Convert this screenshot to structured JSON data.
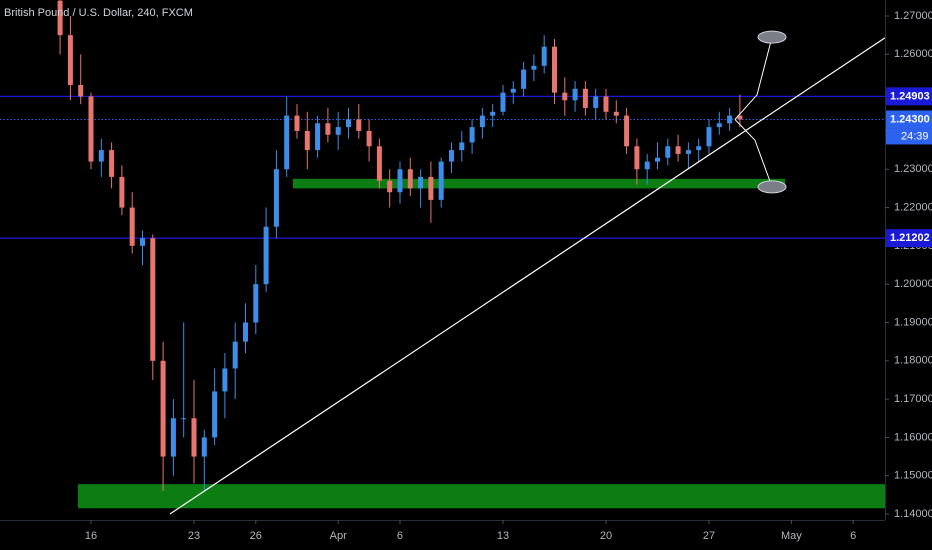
{
  "chart_data": {
    "type": "candlestick",
    "title": "British Pound / U.S. Dollar, 240, FXCM",
    "up_color": "#3d8ee8",
    "down_color": "#e8756e",
    "x": [
      -1.5,
      -1,
      -0.5,
      0,
      0.5,
      1,
      1.5,
      2,
      2.5,
      3,
      3.5,
      4,
      4.5,
      5,
      5.5,
      6,
      6.5,
      7,
      7.5,
      8,
      8.5,
      9,
      9.5,
      10,
      10.5,
      11,
      11.5,
      12,
      12.5,
      13,
      13.5,
      14,
      14.5,
      15,
      15.5,
      16,
      16.5,
      17,
      17.5,
      18,
      18.5,
      19,
      19.5,
      20,
      20.5,
      21,
      21.5,
      22,
      22.5,
      23,
      23.5,
      24,
      24.5,
      25,
      25.5,
      26,
      26.5,
      27,
      27.5,
      28,
      28.5,
      29,
      29.5,
      30,
      30.5,
      31,
      31.5
    ],
    "open": [
      1.274,
      1.265,
      1.252,
      1.249,
      1.232,
      1.235,
      1.228,
      1.22,
      1.21,
      1.212,
      1.18,
      1.155,
      1.165,
      1.165,
      1.155,
      1.16,
      1.172,
      1.178,
      1.185,
      1.19,
      1.2,
      1.215,
      1.23,
      1.244,
      1.24,
      1.235,
      1.242,
      1.239,
      1.241,
      1.243,
      1.24,
      1.236,
      1.227,
      1.224,
      1.23,
      1.225,
      1.228,
      1.222,
      1.232,
      1.235,
      1.237,
      1.241,
      1.244,
      1.245,
      1.25,
      1.251,
      1.256,
      1.257,
      1.262,
      1.25,
      1.248,
      1.251,
      1.246,
      1.249,
      1.245,
      1.244,
      1.236,
      1.23,
      1.232,
      1.233,
      1.236,
      1.234,
      1.235,
      1.236,
      1.241,
      1.242,
      1.244
    ],
    "high": [
      1.2742,
      1.27,
      1.26,
      1.25,
      1.238,
      1.237,
      1.231,
      1.224,
      1.214,
      1.213,
      1.185,
      1.17,
      1.19,
      1.175,
      1.162,
      1.178,
      1.182,
      1.19,
      1.195,
      1.205,
      1.22,
      1.235,
      1.249,
      1.247,
      1.245,
      1.244,
      1.246,
      1.245,
      1.246,
      1.247,
      1.243,
      1.238,
      1.23,
      1.232,
      1.233,
      1.23,
      1.232,
      1.233,
      1.237,
      1.24,
      1.243,
      1.246,
      1.247,
      1.252,
      1.253,
      1.258,
      1.26,
      1.265,
      1.264,
      1.254,
      1.253,
      1.253,
      1.251,
      1.251,
      1.248,
      1.246,
      1.238,
      1.234,
      1.237,
      1.238,
      1.239,
      1.237,
      1.238,
      1.243,
      1.245,
      1.246,
      1.2495
    ],
    "low": [
      1.26,
      1.248,
      1.247,
      1.23,
      1.228,
      1.225,
      1.218,
      1.208,
      1.205,
      1.175,
      1.146,
      1.15,
      1.16,
      1.148,
      1.146,
      1.158,
      1.165,
      1.17,
      1.182,
      1.187,
      1.198,
      1.212,
      1.228,
      1.238,
      1.23,
      1.233,
      1.237,
      1.235,
      1.238,
      1.238,
      1.232,
      1.225,
      1.22,
      1.221,
      1.223,
      1.22,
      1.216,
      1.22,
      1.229,
      1.232,
      1.234,
      1.238,
      1.241,
      1.244,
      1.247,
      1.249,
      1.253,
      1.255,
      1.247,
      1.244,
      1.245,
      1.244,
      1.243,
      1.243,
      1.242,
      1.234,
      1.226,
      1.226,
      1.23,
      1.231,
      1.232,
      1.23,
      1.232,
      1.234,
      1.239,
      1.24,
      1.241
    ],
    "close": [
      1.265,
      1.252,
      1.249,
      1.232,
      1.235,
      1.228,
      1.22,
      1.21,
      1.212,
      1.18,
      1.155,
      1.165,
      1.165,
      1.155,
      1.16,
      1.172,
      1.178,
      1.185,
      1.19,
      1.2,
      1.215,
      1.23,
      1.244,
      1.24,
      1.235,
      1.242,
      1.239,
      1.241,
      1.243,
      1.24,
      1.236,
      1.227,
      1.224,
      1.23,
      1.225,
      1.228,
      1.222,
      1.232,
      1.235,
      1.237,
      1.241,
      1.244,
      1.245,
      1.25,
      1.251,
      1.256,
      1.257,
      1.262,
      1.25,
      1.248,
      1.251,
      1.246,
      1.249,
      1.245,
      1.244,
      1.236,
      1.23,
      1.232,
      1.233,
      1.236,
      1.234,
      1.235,
      1.236,
      1.241,
      1.242,
      1.244,
      1.243
    ],
    "xlim": [
      -4.417,
      38.544
    ],
    "ylim": [
      1.13844,
      1.27418
    ],
    "xticks": [
      {
        "value": 0,
        "label": "16"
      },
      {
        "value": 5,
        "label": "23"
      },
      {
        "value": 8,
        "label": "26"
      },
      {
        "value": 12,
        "label": "Apr"
      },
      {
        "value": 15,
        "label": "6"
      },
      {
        "value": 20,
        "label": "13"
      },
      {
        "value": 25,
        "label": "20"
      },
      {
        "value": 30,
        "label": "27"
      },
      {
        "value": 34,
        "label": "May"
      },
      {
        "value": 37,
        "label": "6"
      }
    ],
    "yticks": [
      {
        "value": 1.27,
        "label": "1.27000"
      },
      {
        "value": 1.26,
        "label": "1.26000"
      },
      {
        "value": 1.25,
        "label": "1.25000"
      },
      {
        "value": 1.24,
        "label": "1.24000"
      },
      {
        "value": 1.23,
        "label": "1.23000"
      },
      {
        "value": 1.22,
        "label": "1.22000"
      },
      {
        "value": 1.21,
        "label": "1.21000"
      },
      {
        "value": 1.2,
        "label": "1.20000"
      },
      {
        "value": 1.19,
        "label": "1.19000"
      },
      {
        "value": 1.18,
        "label": "1.18000"
      },
      {
        "value": 1.17,
        "label": "1.17000"
      },
      {
        "value": 1.16,
        "label": "1.16000"
      },
      {
        "value": 1.15,
        "label": "1.15000"
      },
      {
        "value": 1.14,
        "label": "1.14000"
      }
    ],
    "levels": [
      {
        "value": 1.24903,
        "label": "1.24903",
        "color": "#1a1ad6",
        "style": "solid"
      },
      {
        "value": 1.243,
        "label": "1.24300",
        "color": "#2d62f0",
        "style": "dotted"
      },
      {
        "value": 1.21202,
        "label": "1.21202",
        "color": "#1a1ad6",
        "style": "solid"
      }
    ],
    "countdown": "24:39",
    "zones": [
      {
        "from": 1.225,
        "to": 1.2275,
        "x": [
          9.8,
          33.7
        ],
        "color": "#0b7d12"
      },
      {
        "from": 1.1415,
        "to": 1.1478,
        "x": [
          -0.63,
          38.544
        ],
        "color": "#0b7d12"
      }
    ],
    "trendline": {
      "x": [
        3.83,
        38.54
      ],
      "y": [
        1.14,
        1.2643
      ],
      "color": "#ffffff"
    },
    "projections": [
      {
        "x": [
          31.26,
          32.33,
          33.06
        ],
        "y": [
          1.243,
          1.2494,
          1.2645
        ]
      },
      {
        "x": [
          31.26,
          32.23,
          33.06
        ],
        "y": [
          1.243,
          1.2376,
          1.2254
        ]
      }
    ]
  }
}
